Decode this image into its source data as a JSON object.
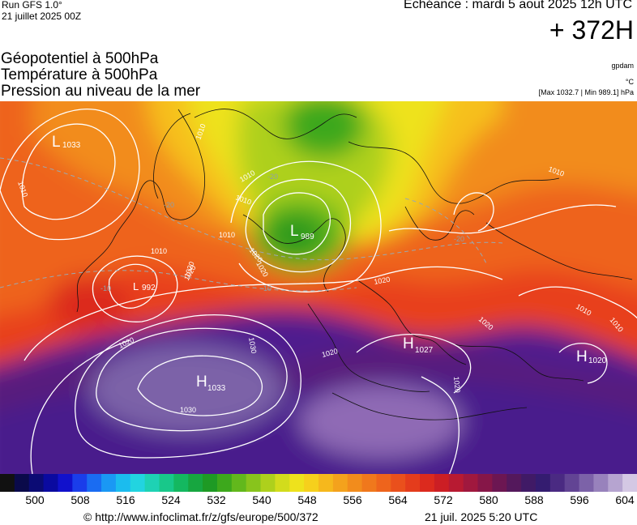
{
  "header": {
    "run_line1": "Run GFS 1.0°",
    "run_line2": "21 juillet 2025 00Z",
    "echeance": "Echéance : mardi 5 aout 2025 12h UTC",
    "lead": "+ 372H"
  },
  "titles": {
    "line1": "Géopotentiel à 500hPa",
    "line2": "Température à 500hPa",
    "line3": "Pression au niveau de la mer"
  },
  "units": {
    "geo": "gpdam",
    "temp": "°C",
    "pressure": "[Max 1032.7 | Min 989.1] hPa"
  },
  "map": {
    "pressure_centers": [
      {
        "letter": "L",
        "value": "1033"
      },
      {
        "letter": "L",
        "value": "989"
      },
      {
        "letter": "L",
        "value": "992"
      },
      {
        "letter": "H",
        "value": "1033"
      },
      {
        "letter": "H",
        "value": "1027"
      },
      {
        "letter": "H",
        "value": "1020"
      }
    ],
    "isobar_labels": [
      "1010",
      "1010",
      "1020",
      "1020",
      "1030",
      "1020",
      "1020",
      "1030",
      "1010",
      "1020",
      "1020",
      "1010",
      "1010",
      "1020",
      "1010",
      "1010",
      "1020",
      "1010",
      "1020",
      "1010"
    ],
    "temp_labels": [
      "-20",
      "-20",
      "-20",
      "-10",
      "-10"
    ],
    "colors": {
      "green": "#2f9a1e",
      "yellow": "#f4e21a",
      "orange": "#f08a1c",
      "red": "#e8401c",
      "purple": "#4f1c8e",
      "light_purple": "#8f6bb5"
    }
  },
  "colorbar": {
    "colors": [
      "#111111",
      "#0a0a4a",
      "#0b0b74",
      "#0a0aa0",
      "#1111cc",
      "#1a3dea",
      "#1a6cf2",
      "#1a98f4",
      "#1bbcee",
      "#22d4e0",
      "#1ed2b4",
      "#18c88a",
      "#14b860",
      "#17a640",
      "#1e9a24",
      "#3da81c",
      "#62b81c",
      "#88c41c",
      "#aed01c",
      "#d2dc1c",
      "#eee21c",
      "#f6d01c",
      "#f6b81c",
      "#f4a21c",
      "#f28c1c",
      "#f0781c",
      "#ee641c",
      "#ea501c",
      "#e43c1c",
      "#dc2a1e",
      "#cc1e24",
      "#b81a32",
      "#a0183e",
      "#861648",
      "#6c1652",
      "#54185c",
      "#401a66",
      "#341c70",
      "#4a2a82",
      "#624494",
      "#7c62a8",
      "#9882bc",
      "#b6a4d0",
      "#d4c8e4"
    ],
    "ticks": [
      "500",
      "508",
      "516",
      "524",
      "532",
      "540",
      "548",
      "556",
      "564",
      "572",
      "580",
      "588",
      "596",
      "604"
    ]
  },
  "footer": {
    "url": "© http://www.infoclimat.fr/z/gfs/europe/500/372",
    "date": "21 juil. 2025  5:20 UTC"
  }
}
